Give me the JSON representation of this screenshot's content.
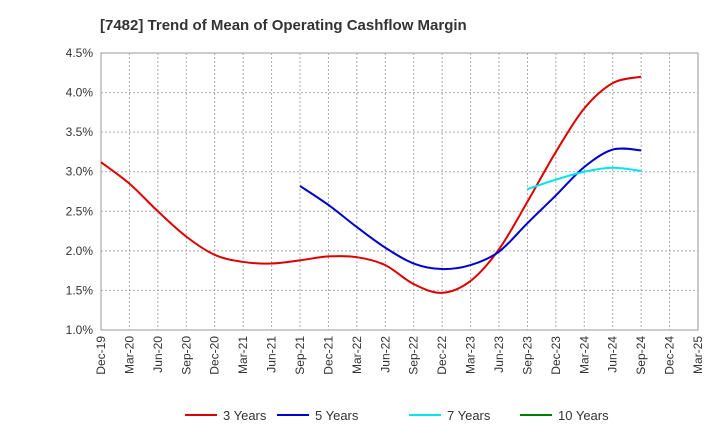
{
  "chart_data": {
    "type": "line",
    "title": "[7482]  Trend of Mean of Operating Cashflow Margin",
    "xlabel": "",
    "ylabel": "",
    "x_ticks": [
      "Dec-19",
      "Mar-20",
      "Jun-20",
      "Sep-20",
      "Dec-20",
      "Mar-21",
      "Jun-21",
      "Sep-21",
      "Dec-21",
      "Mar-22",
      "Jun-22",
      "Sep-22",
      "Dec-22",
      "Mar-23",
      "Jun-23",
      "Sep-23",
      "Dec-23",
      "Mar-24",
      "Jun-24",
      "Sep-24",
      "Dec-24",
      "Mar-25"
    ],
    "y_ticks": [
      "1.0%",
      "1.5%",
      "2.0%",
      "2.5%",
      "3.0%",
      "3.5%",
      "4.0%",
      "4.5%"
    ],
    "ylim": [
      1.0,
      4.5
    ],
    "grid": true,
    "legend_position": "bottom",
    "series": [
      {
        "name": "3 Years",
        "color": "#dd0000",
        "x": [
          "Dec-19",
          "Mar-20",
          "Jun-20",
          "Sep-20",
          "Dec-20",
          "Mar-21",
          "Jun-21",
          "Sep-21",
          "Dec-21",
          "Mar-22",
          "Jun-22",
          "Sep-22",
          "Dec-22",
          "Mar-23",
          "Jun-23",
          "Sep-23",
          "Dec-23",
          "Mar-24",
          "Jun-24",
          "Sep-24"
        ],
        "values": [
          3.12,
          2.85,
          2.5,
          2.18,
          1.95,
          1.86,
          1.84,
          1.88,
          1.93,
          1.92,
          1.82,
          1.58,
          1.47,
          1.62,
          2.02,
          2.62,
          3.25,
          3.8,
          4.12,
          4.2
        ]
      },
      {
        "name": "5 Years",
        "color": "#0000cc",
        "x": [
          "Sep-21",
          "Dec-21",
          "Mar-22",
          "Jun-22",
          "Sep-22",
          "Dec-22",
          "Mar-23",
          "Jun-23",
          "Sep-23",
          "Dec-23",
          "Mar-24",
          "Jun-24",
          "Sep-24"
        ],
        "values": [
          2.82,
          2.58,
          2.3,
          2.04,
          1.84,
          1.77,
          1.82,
          1.99,
          2.35,
          2.7,
          3.06,
          3.28,
          3.27
        ]
      },
      {
        "name": "7 Years",
        "color": "#00e5ee",
        "x": [
          "Sep-23",
          "Dec-23",
          "Mar-24",
          "Jun-24",
          "Sep-24"
        ],
        "values": [
          2.78,
          2.9,
          3.0,
          3.05,
          3.01
        ]
      },
      {
        "name": "10 Years",
        "color": "#008000",
        "x": [],
        "values": []
      }
    ]
  }
}
